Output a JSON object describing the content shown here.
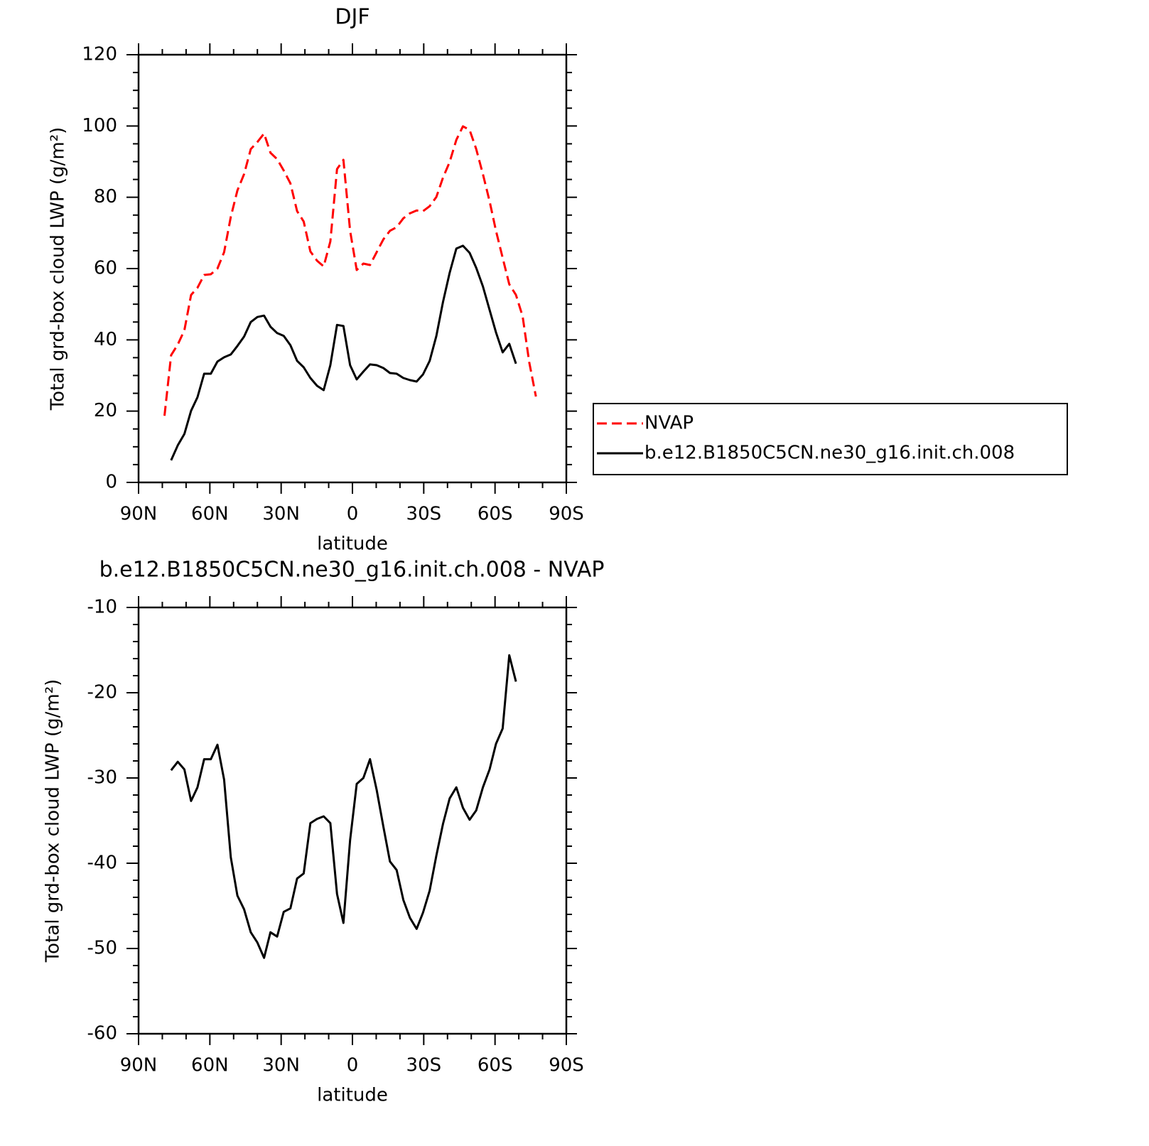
{
  "chart_data": [
    {
      "type": "line",
      "title": "DJF",
      "xlabel": "latitude",
      "ylabel": "Total grd-box cloud LWP (g/m²)",
      "x": [
        79.1,
        76.3,
        73.5,
        70.7,
        67.9,
        65.2,
        62.4,
        59.6,
        56.8,
        54.0,
        51.2,
        48.4,
        45.6,
        42.8,
        40.0,
        37.2,
        34.5,
        31.7,
        28.9,
        26.1,
        23.3,
        20.5,
        17.7,
        14.9,
        12.1,
        9.3,
        6.5,
        3.8,
        1.0,
        -1.8,
        -4.6,
        -7.4,
        -10.2,
        -13.0,
        -15.8,
        -18.6,
        -21.4,
        -24.2,
        -27.0,
        -29.7,
        -32.5,
        -35.3,
        -38.1,
        -40.9,
        -43.7,
        -46.5,
        -49.3,
        -52.1,
        -54.9,
        -57.7,
        -60.4,
        -63.2,
        -66.0,
        -68.8,
        -71.6,
        -74.4,
        -77.2
      ],
      "xlim": [
        90,
        -90
      ],
      "xticks": [
        {
          "value": 90,
          "label": "90N"
        },
        {
          "value": 60,
          "label": "60N"
        },
        {
          "value": 30,
          "label": "30N"
        },
        0,
        {
          "value": -30,
          "label": "30S"
        },
        {
          "value": -60,
          "label": "60S"
        },
        {
          "value": -90,
          "label": "90S"
        }
      ],
      "xminorticks": [
        80,
        70,
        50,
        40,
        20,
        10,
        -10,
        -20,
        -40,
        -50,
        -70,
        -80
      ],
      "ylim": [
        0,
        120
      ],
      "yticks": [
        0,
        20,
        40,
        60,
        80,
        100,
        120
      ],
      "yminorticks": [
        5,
        10,
        15,
        25,
        30,
        35,
        45,
        50,
        55,
        65,
        70,
        75,
        85,
        90,
        95,
        105,
        110,
        115
      ],
      "legend": "right",
      "series": [
        {
          "name": "NVAP",
          "color": "#ff0000",
          "dash": true,
          "values": [
            18.7,
            35.7,
            38.7,
            42.7,
            52.6,
            54.6,
            58.2,
            58.4,
            60.0,
            64.6,
            74.5,
            81.9,
            86.5,
            93.5,
            95.5,
            97.9,
            92.5,
            90.7,
            87.5,
            83.9,
            76.1,
            73.2,
            64.8,
            62.2,
            60.6,
            67.6,
            87.9,
            90.5,
            70.6,
            59.6,
            61.4,
            61.0,
            64.6,
            68.2,
            70.6,
            71.6,
            74.1,
            75.5,
            76.3,
            76.1,
            77.5,
            80.1,
            85.5,
            89.9,
            96.1,
            99.9,
            98.9,
            93.5,
            86.5,
            78.9,
            70.6,
            63.0,
            55.6,
            52.6,
            46.6,
            33.7,
            24.1
          ]
        },
        {
          "name": "b.e12.B1850C5CN.ne30_g16.init.ch.008",
          "color": "#000000",
          "dash": false,
          "values": [
            null,
            6.2,
            10.4,
            13.6,
            20.1,
            23.9,
            30.5,
            30.5,
            33.9,
            35.1,
            35.9,
            38.3,
            40.9,
            45.0,
            46.4,
            46.8,
            43.7,
            41.9,
            41.1,
            38.5,
            34.1,
            32.3,
            29.3,
            27.1,
            25.9,
            32.9,
            44.2,
            43.9,
            32.9,
            28.9,
            31.1,
            33.1,
            32.9,
            32.1,
            30.7,
            30.5,
            29.3,
            28.7,
            28.3,
            30.3,
            34.1,
            41.1,
            50.6,
            58.8,
            65.6,
            66.4,
            64.4,
            60.2,
            55.0,
            48.4,
            42.1,
            36.5,
            38.9,
            33.3,
            null,
            null,
            null
          ]
        }
      ]
    },
    {
      "type": "line",
      "title": "b.e12.B1850C5CN.ne30_g16.init.ch.008 - NVAP",
      "xlabel": "latitude",
      "ylabel": "Total grd-box cloud LWP (g/m²)",
      "x": [
        79.1,
        76.3,
        73.5,
        70.7,
        67.9,
        65.2,
        62.4,
        59.6,
        56.8,
        54.0,
        51.2,
        48.4,
        45.6,
        42.8,
        40.0,
        37.2,
        34.5,
        31.7,
        28.9,
        26.1,
        23.3,
        20.5,
        17.7,
        14.9,
        12.1,
        9.3,
        6.5,
        3.8,
        1.0,
        -1.8,
        -4.6,
        -7.4,
        -10.2,
        -13.0,
        -15.8,
        -18.6,
        -21.4,
        -24.2,
        -27.0,
        -29.7,
        -32.5,
        -35.3,
        -38.1,
        -40.9,
        -43.7,
        -46.5,
        -49.3,
        -52.1,
        -54.9,
        -57.7,
        -60.4,
        -63.2,
        -66.0,
        -68.8,
        -71.6,
        -74.4,
        -77.2
      ],
      "xlim": [
        90,
        -90
      ],
      "xticks": [
        {
          "value": 90,
          "label": "90N"
        },
        {
          "value": 60,
          "label": "60N"
        },
        {
          "value": 30,
          "label": "30N"
        },
        0,
        {
          "value": -30,
          "label": "30S"
        },
        {
          "value": -60,
          "label": "60S"
        },
        {
          "value": -90,
          "label": "90S"
        }
      ],
      "xminorticks": [
        80,
        70,
        50,
        40,
        20,
        10,
        -10,
        -20,
        -40,
        -50,
        -70,
        -80
      ],
      "ylim": [
        -60,
        -10
      ],
      "yticks": [
        -60,
        -50,
        -40,
        -30,
        -20,
        -10
      ],
      "yminorticks": [
        -58,
        -56,
        -54,
        -52,
        -48,
        -46,
        -44,
        -42,
        -38,
        -36,
        -34,
        -32,
        -28,
        -26,
        -24,
        -22,
        -18,
        -16,
        -14,
        -12
      ],
      "series": [
        {
          "color": "#000000",
          "dash": false,
          "values": [
            null,
            -29.1,
            -28.1,
            -29.0,
            -32.7,
            -31.1,
            -27.8,
            -27.8,
            -26.1,
            -30.2,
            -39.3,
            -43.8,
            -45.4,
            -48.1,
            -49.3,
            -51.1,
            -48.1,
            -48.6,
            -45.7,
            -45.3,
            -41.8,
            -41.2,
            -35.3,
            -34.8,
            -34.5,
            -35.3,
            -43.6,
            -47.0,
            -37.3,
            -30.7,
            -30.0,
            -27.8,
            -31.4,
            -35.7,
            -39.8,
            -40.8,
            -44.3,
            -46.4,
            -47.7,
            -45.8,
            -43.2,
            -39.1,
            -35.4,
            -32.4,
            -31.1,
            -33.5,
            -34.9,
            -33.8,
            -31.1,
            -29.0,
            -26.0,
            -24.2,
            -15.6,
            -18.7,
            null,
            null,
            null
          ]
        }
      ]
    }
  ]
}
